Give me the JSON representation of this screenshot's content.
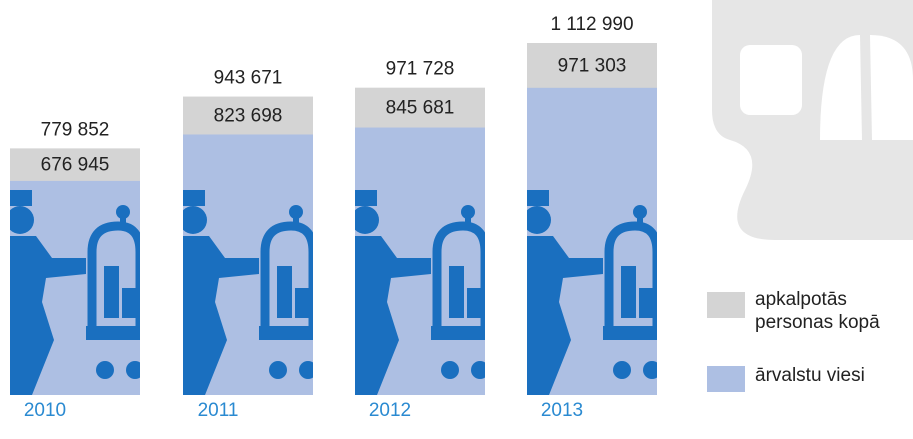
{
  "chart_data": {
    "type": "bar",
    "categories": [
      "2010",
      "2011",
      "2012",
      "2013"
    ],
    "series": [
      {
        "name": "apkalpotās personas kopā",
        "color": "#d4d4d4",
        "values": [
          779852,
          943671,
          971728,
          1112990
        ],
        "value_labels": [
          "779 852",
          "943 671",
          "971 728",
          "1 112 990"
        ]
      },
      {
        "name": "ārvalstu viesi",
        "color": "#adbfe3",
        "values": [
          676945,
          823698,
          845681,
          971303
        ],
        "value_labels": [
          "676 945",
          "823 698",
          "845 681",
          "971 303"
        ]
      }
    ]
  }
}
